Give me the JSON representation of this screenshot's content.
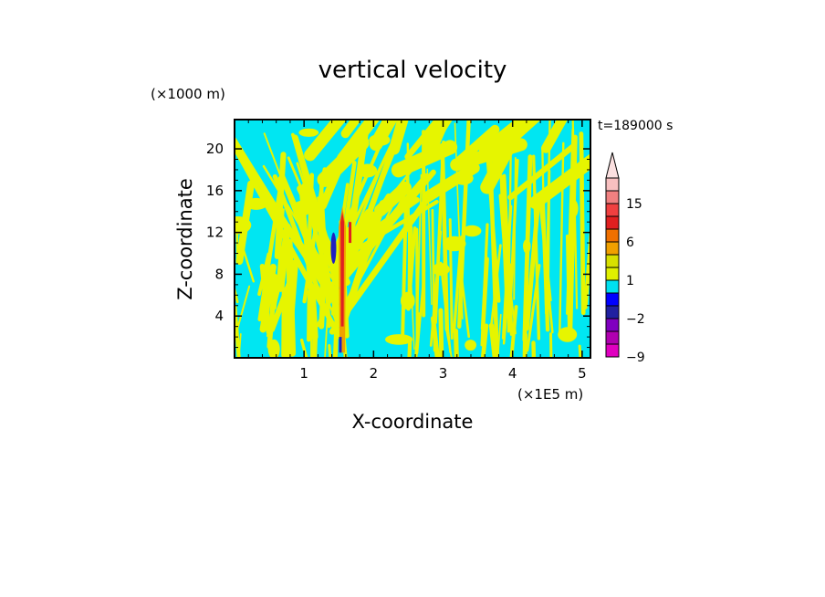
{
  "chart_data": {
    "type": "heatmap",
    "title": "vertical velocity",
    "xlabel": "X-coordinate",
    "ylabel": "Z-coordinate",
    "x_unit": "(×1E5 m)",
    "y_unit": "(×1000 m)",
    "time_label": "t=189000 s",
    "xlim": [
      0,
      5.12
    ],
    "ylim": [
      0,
      22.8
    ],
    "x_ticks": [
      1,
      2,
      3,
      4,
      5
    ],
    "x_tick_labels": [
      "1",
      "2",
      "3",
      "4",
      "5"
    ],
    "y_ticks": [
      4,
      8,
      12,
      16,
      20
    ],
    "y_tick_labels": [
      "4",
      "8",
      "12",
      "16",
      "20"
    ],
    "colorbar": {
      "levels": [
        -9,
        -6,
        -3,
        -2,
        -1,
        0,
        1,
        2,
        3,
        6,
        9,
        12,
        15,
        18,
        21
      ],
      "colors": [
        "#e000c0",
        "#b000b0",
        "#8000c0",
        "#2020a0",
        "#0000ff",
        "#00e0f0",
        "#e0f000",
        "#d8e000",
        "#f0a000",
        "#f07000",
        "#e02020",
        "#f04040",
        "#f08080",
        "#f8c0c0"
      ],
      "tick_labels": [
        {
          "value": 15,
          "label": "15"
        },
        {
          "value": 6,
          "label": "6"
        },
        {
          "value": 1,
          "label": "1"
        },
        {
          "value": -2,
          "label": "−2"
        },
        {
          "value": -9,
          "label": "−9"
        }
      ],
      "extend": "max"
    },
    "background_color": "#00e6f2",
    "positive_color": "#e6f500",
    "features": [
      {
        "kind": "updraft",
        "x": 1.55,
        "z_range": [
          0.5,
          14.5
        ],
        "max_w": 15
      },
      {
        "kind": "downdraft",
        "x": 1.45,
        "z_range": [
          9,
          12
        ],
        "min_w": -3
      }
    ]
  }
}
